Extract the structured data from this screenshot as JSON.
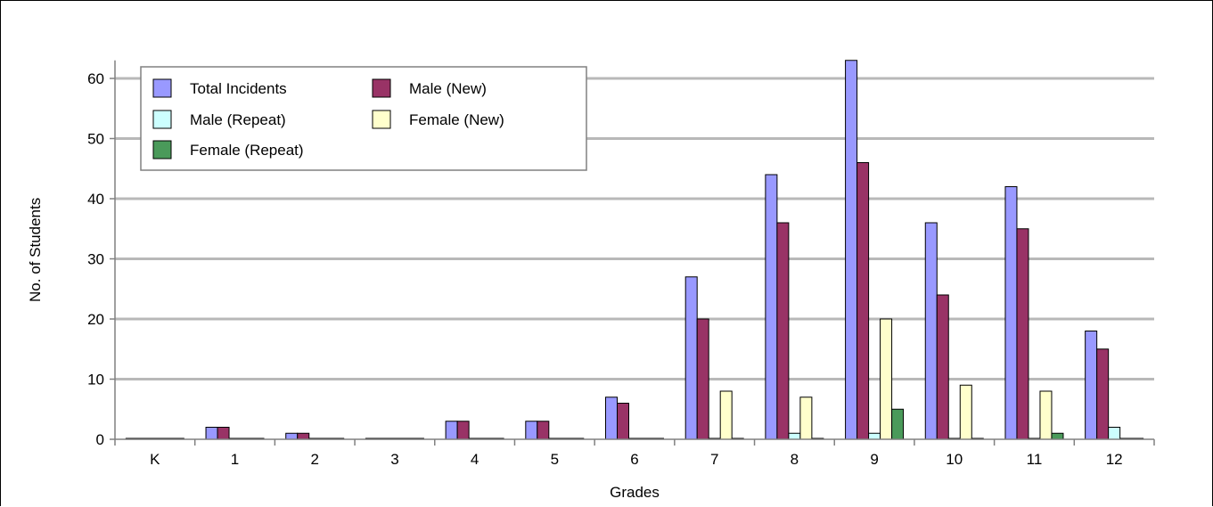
{
  "chart_data": {
    "type": "bar",
    "xlabel": "Grades",
    "ylabel": "No. of Students",
    "ylim": [
      0,
      63
    ],
    "yticks": [
      0,
      10,
      20,
      30,
      40,
      50,
      60
    ],
    "grid": true,
    "legend_position": "top-left",
    "categories": [
      "K",
      "1",
      "2",
      "3",
      "4",
      "5",
      "6",
      "7",
      "8",
      "9",
      "10",
      "11",
      "12"
    ],
    "series": [
      {
        "name": "Total Incidents",
        "color": "#9999ff",
        "values": [
          0,
          2,
          1,
          0,
          3,
          3,
          7,
          27,
          44,
          63,
          36,
          42,
          18
        ]
      },
      {
        "name": "Male (New)",
        "color": "#993366",
        "values": [
          0,
          2,
          1,
          0,
          3,
          3,
          6,
          20,
          36,
          46,
          24,
          35,
          15
        ]
      },
      {
        "name": "Male (Repeat)",
        "color": "#ccffff",
        "values": [
          0,
          0,
          0,
          0,
          0,
          0,
          0,
          0,
          1,
          1,
          0,
          0,
          2
        ]
      },
      {
        "name": "Female (New)",
        "color": "#ffffcc",
        "values": [
          0,
          0,
          0,
          0,
          0,
          0,
          0,
          8,
          7,
          20,
          9,
          8,
          0
        ]
      },
      {
        "name": "Female (Repeat)",
        "color": "#4a9a5a",
        "values": [
          0,
          0,
          0,
          0,
          0,
          0,
          0,
          0,
          0,
          5,
          0,
          1,
          0
        ]
      }
    ]
  }
}
